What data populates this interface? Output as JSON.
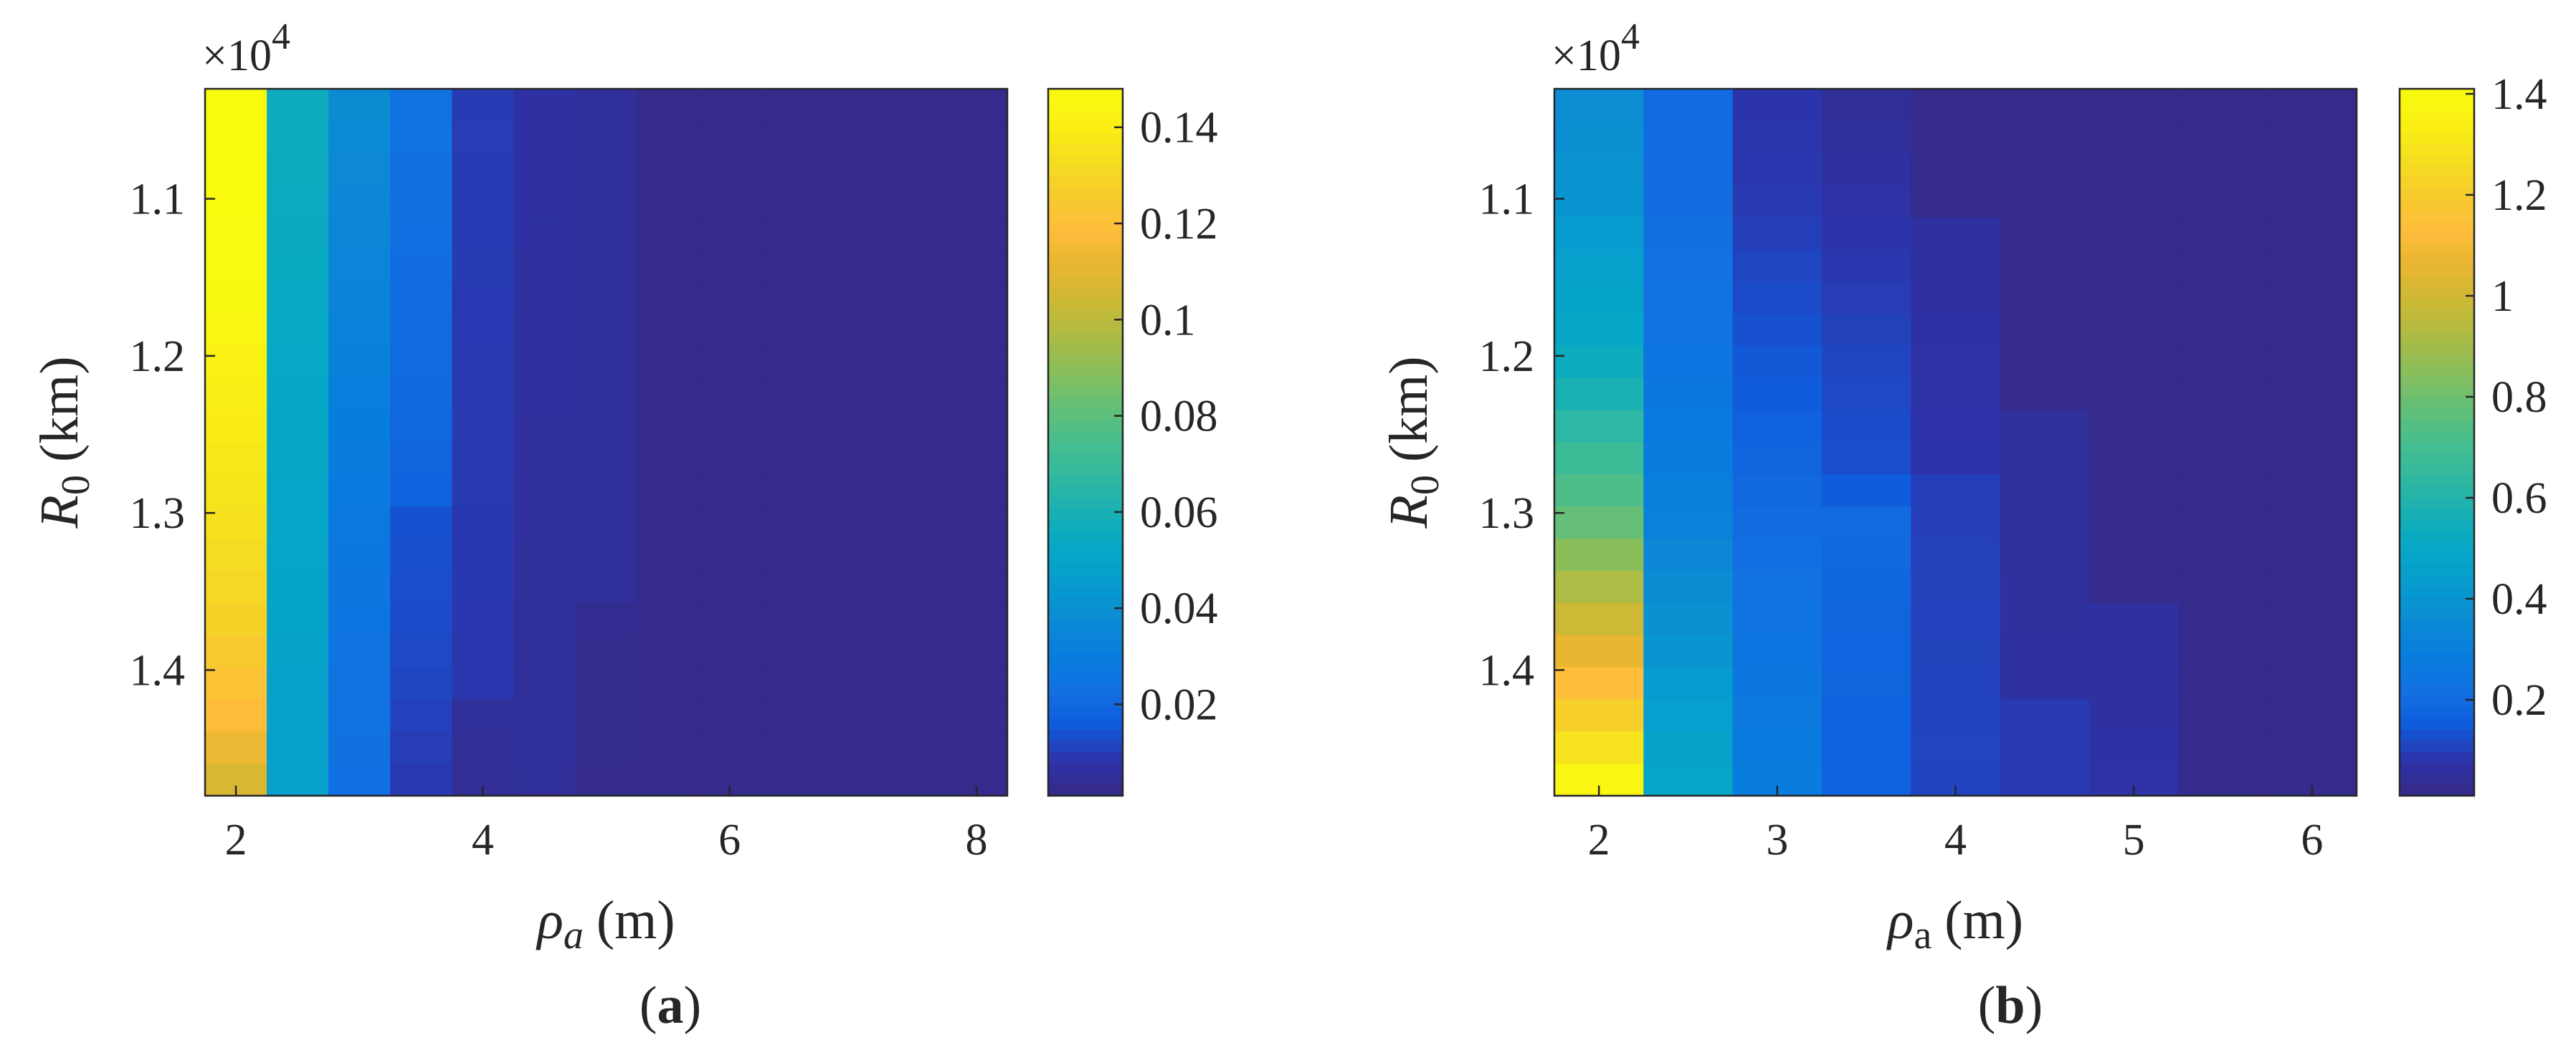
{
  "chart_data": [
    {
      "type": "heatmap",
      "caption_paren_open": "(",
      "caption_letter": "a",
      "caption_paren_close": ")",
      "xlabel_symbol": "ρ",
      "xlabel_subscript": "a",
      "xlabel_unit": "(m)",
      "ylabel_symbol": "R",
      "ylabel_subscript": "0",
      "ylabel_unit": "(km)",
      "y_exponent_base": "×10",
      "y_exponent_power": "4",
      "xlim": [
        1.75,
        8.25
      ],
      "ylim": [
        10300,
        14800
      ],
      "y_reversed": true,
      "x_ticks": [
        {
          "v": 2,
          "label": "2"
        },
        {
          "v": 4,
          "label": "4"
        },
        {
          "v": 6,
          "label": "6"
        },
        {
          "v": 8,
          "label": "8"
        }
      ],
      "y_ticks": [
        {
          "v": 11000,
          "label": "1.1"
        },
        {
          "v": 12000,
          "label": "1.2"
        },
        {
          "v": 13000,
          "label": "1.3"
        },
        {
          "v": 14000,
          "label": "1.4"
        }
      ],
      "clim": [
        0.001,
        0.148
      ],
      "colorbar_ticks": [
        {
          "v": 0.02,
          "label": "0.02"
        },
        {
          "v": 0.04,
          "label": "0.04"
        },
        {
          "v": 0.06,
          "label": "0.06"
        },
        {
          "v": 0.08,
          "label": "0.08"
        },
        {
          "v": 0.1,
          "label": "0.1"
        },
        {
          "v": 0.12,
          "label": "0.12"
        },
        {
          "v": 0.14,
          "label": "0.14"
        }
      ],
      "x_centers": [
        2,
        2.5,
        3,
        3.5,
        4,
        4.5,
        5,
        5.5,
        6,
        6.5,
        7,
        7.5,
        8
      ],
      "y_rows": 22,
      "columns": [
        {
          "x": 2,
          "profile": [
            [
              10300,
              0.148
            ],
            [
              11500,
              0.147
            ],
            [
              12000,
              0.142
            ],
            [
              13000,
              0.135
            ],
            [
              13700,
              0.128
            ],
            [
              14300,
              0.118
            ],
            [
              14800,
              0.105
            ]
          ]
        },
        {
          "x": 2.5,
          "profile": [
            [
              10300,
              0.056
            ],
            [
              11500,
              0.054
            ],
            [
              12500,
              0.052
            ],
            [
              13500,
              0.05
            ],
            [
              14800,
              0.047
            ]
          ]
        },
        {
          "x": 3,
          "profile": [
            [
              10300,
              0.038
            ],
            [
              11500,
              0.034
            ],
            [
              12500,
              0.03
            ],
            [
              13500,
              0.026
            ],
            [
              14800,
              0.022
            ]
          ]
        },
        {
          "x": 3.5,
          "profile": [
            [
              10300,
              0.024
            ],
            [
              12000,
              0.021
            ],
            [
              12900,
              0.018
            ],
            [
              13000,
              0.014
            ],
            [
              14000,
              0.012
            ],
            [
              14800,
              0.009
            ]
          ]
        },
        {
          "x": 4,
          "profile": [
            [
              10300,
              0.01
            ],
            [
              14200,
              0.009
            ],
            [
              14250,
              0.005
            ],
            [
              14800,
              0.004
            ]
          ]
        },
        {
          "x": 4.5,
          "profile": [
            [
              10300,
              0.007
            ],
            [
              14800,
              0.005
            ]
          ]
        },
        {
          "x": 5,
          "profile": [
            [
              10300,
              0.005
            ],
            [
              13500,
              0.005
            ],
            [
              13550,
              0.003
            ],
            [
              14800,
              0.002
            ]
          ]
        },
        {
          "x": 5.5,
          "profile": [
            [
              10300,
              0.002
            ],
            [
              14800,
              0.002
            ]
          ]
        },
        {
          "x": 6,
          "profile": [
            [
              10300,
              0.002
            ],
            [
              14800,
              0.002
            ]
          ]
        },
        {
          "x": 6.5,
          "profile": [
            [
              10300,
              0.002
            ],
            [
              14800,
              0.002
            ]
          ]
        },
        {
          "x": 7,
          "profile": [
            [
              10300,
              0.002
            ],
            [
              14800,
              0.002
            ]
          ]
        },
        {
          "x": 7.5,
          "profile": [
            [
              10300,
              0.002
            ],
            [
              14800,
              0.002
            ]
          ]
        },
        {
          "x": 8,
          "profile": [
            [
              10300,
              0.002
            ],
            [
              14800,
              0.002
            ]
          ]
        }
      ]
    },
    {
      "type": "heatmap",
      "caption_paren_open": "(",
      "caption_letter": "b",
      "caption_paren_close": ")",
      "xlabel_symbol": "ρ",
      "xlabel_subscript": "a",
      "xlabel_unit": "(m)",
      "ylabel_symbol": "R",
      "ylabel_subscript": "0",
      "ylabel_unit": "(km)",
      "y_exponent_base": "×10",
      "y_exponent_power": "4",
      "xlim": [
        1.75,
        6.25
      ],
      "ylim": [
        10300,
        14800
      ],
      "y_reversed": true,
      "x_ticks": [
        {
          "v": 2,
          "label": "2"
        },
        {
          "v": 3,
          "label": "3"
        },
        {
          "v": 4,
          "label": "4"
        },
        {
          "v": 5,
          "label": "5"
        },
        {
          "v": 6,
          "label": "6"
        }
      ],
      "y_ticks": [
        {
          "v": 11000,
          "label": "1.1"
        },
        {
          "v": 12000,
          "label": "1.2"
        },
        {
          "v": 13000,
          "label": "1.3"
        },
        {
          "v": 14000,
          "label": "1.4"
        }
      ],
      "clim": [
        0.01,
        1.41
      ],
      "colorbar_ticks": [
        {
          "v": 0.2,
          "label": "0.2"
        },
        {
          "v": 0.4,
          "label": "0.4"
        },
        {
          "v": 0.6,
          "label": "0.6"
        },
        {
          "v": 0.8,
          "label": "0.8"
        },
        {
          "v": 1.0,
          "label": "1"
        },
        {
          "v": 1.2,
          "label": "1.2"
        },
        {
          "v": 1.4,
          "label": "1.4"
        }
      ],
      "x_centers": [
        2,
        2.5,
        3,
        3.5,
        4,
        4.5,
        5,
        5.5,
        6
      ],
      "y_rows": 22,
      "columns": [
        {
          "x": 2,
          "profile": [
            [
              10300,
              0.36
            ],
            [
              11000,
              0.4
            ],
            [
              12000,
              0.52
            ],
            [
              13000,
              0.76
            ],
            [
              13700,
              1.0
            ],
            [
              14400,
              1.25
            ],
            [
              14800,
              1.41
            ]
          ]
        },
        {
          "x": 2.5,
          "profile": [
            [
              10300,
              0.2
            ],
            [
              11000,
              0.21
            ],
            [
              12000,
              0.24
            ],
            [
              13000,
              0.31
            ],
            [
              14000,
              0.42
            ],
            [
              14800,
              0.5
            ]
          ]
        },
        {
          "x": 3,
          "profile": [
            [
              10300,
              0.08
            ],
            [
              11000,
              0.09
            ],
            [
              12000,
              0.14
            ],
            [
              13000,
              0.2
            ],
            [
              14000,
              0.25
            ],
            [
              14800,
              0.29
            ]
          ]
        },
        {
          "x": 3.5,
          "profile": [
            [
              10300,
              0.04
            ],
            [
              12000,
              0.11
            ],
            [
              12800,
              0.13
            ],
            [
              13000,
              0.2
            ],
            [
              13600,
              0.18
            ],
            [
              14800,
              0.17
            ]
          ]
        },
        {
          "x": 4,
          "profile": [
            [
              10300,
              0.02
            ],
            [
              11100,
              0.02
            ],
            [
              11150,
              0.06
            ],
            [
              12800,
              0.08
            ],
            [
              12850,
              0.1
            ],
            [
              14800,
              0.11
            ]
          ]
        },
        {
          "x": 4.5,
          "profile": [
            [
              10300,
              0.02
            ],
            [
              12400,
              0.02
            ],
            [
              12450,
              0.05
            ],
            [
              14200,
              0.06
            ],
            [
              14250,
              0.09
            ],
            [
              14800,
              0.09
            ]
          ]
        },
        {
          "x": 5,
          "profile": [
            [
              10300,
              0.02
            ],
            [
              13500,
              0.02
            ],
            [
              13550,
              0.06
            ],
            [
              14800,
              0.07
            ]
          ]
        },
        {
          "x": 5.5,
          "profile": [
            [
              10300,
              0.02
            ],
            [
              14800,
              0.02
            ]
          ]
        },
        {
          "x": 6,
          "profile": [
            [
              10300,
              0.02
            ],
            [
              14800,
              0.02
            ]
          ]
        }
      ]
    }
  ]
}
